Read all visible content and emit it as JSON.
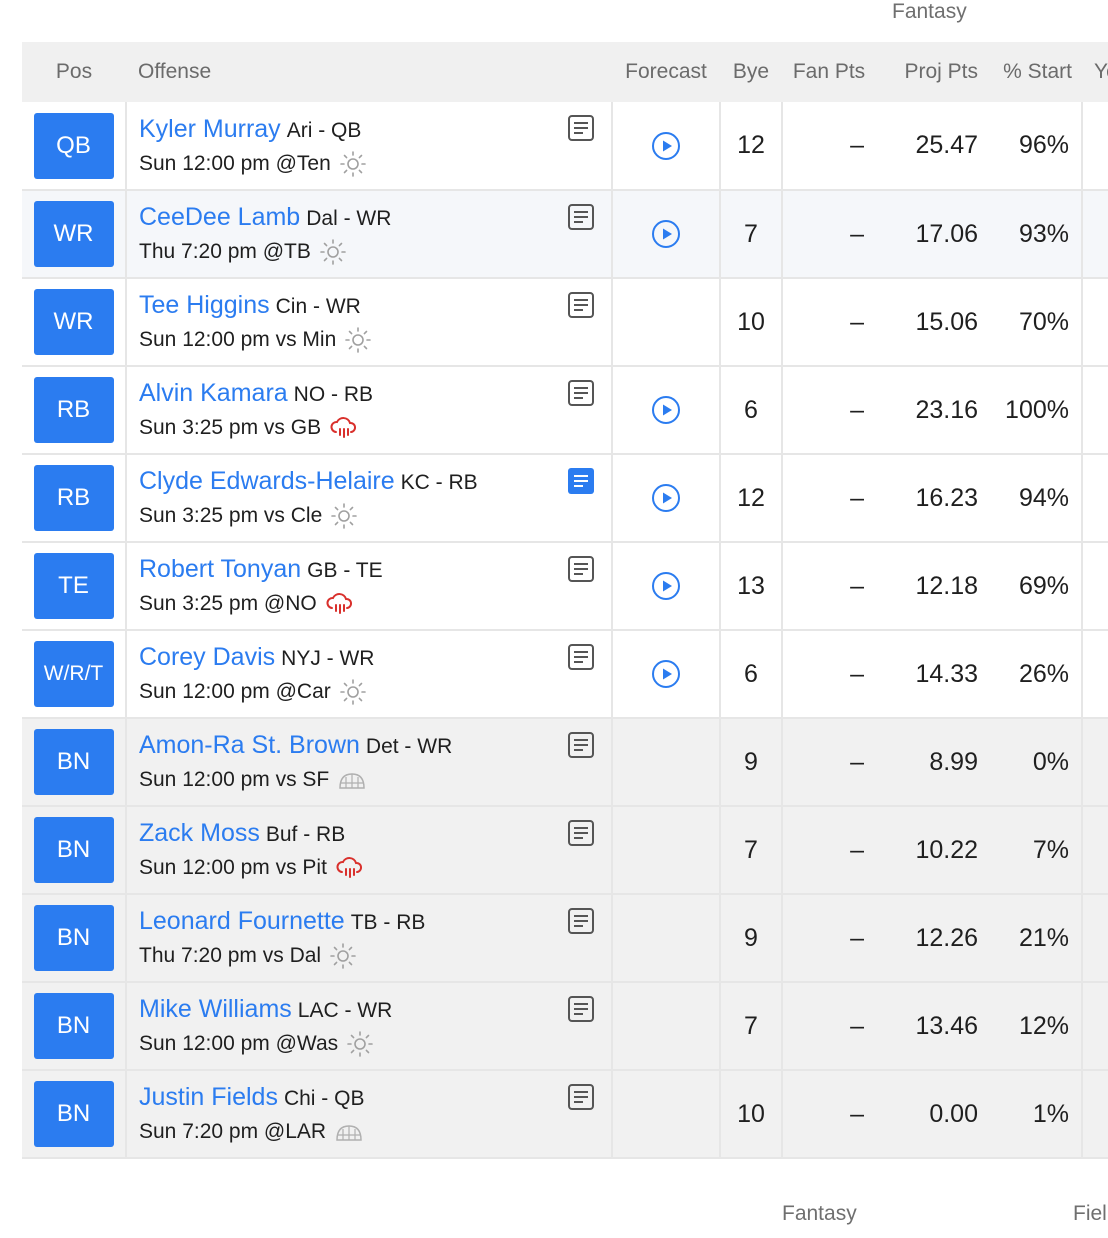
{
  "header": {
    "top_group": "Fantasy",
    "bottom_group_1": "Fantasy",
    "bottom_group_2": "Fiel",
    "columns": {
      "pos": "Pos",
      "offense": "Offense",
      "forecast": "Forecast",
      "bye": "Bye",
      "fan_pts": "Fan Pts",
      "proj_pts": "Proj Pts",
      "start": "% Start",
      "yo": "Yo"
    }
  },
  "rows": [
    {
      "pos": "QB",
      "name": "Kyler Murray",
      "team": "Ari - QB",
      "game": "Sun 12:00 pm @Ten",
      "weather": "sun-icon",
      "note": "outline",
      "forecast": true,
      "bye": "12",
      "fan": "–",
      "proj": "25.47",
      "start": "96%",
      "style": "normal"
    },
    {
      "pos": "WR",
      "name": "CeeDee Lamb",
      "team": "Dal - WR",
      "game": "Thu 7:20 pm @TB",
      "weather": "sun-icon",
      "note": "outline",
      "forecast": true,
      "bye": "7",
      "fan": "–",
      "proj": "17.06",
      "start": "93%",
      "style": "alt"
    },
    {
      "pos": "WR",
      "name": "Tee Higgins",
      "team": "Cin - WR",
      "game": "Sun 12:00 pm vs Min",
      "weather": "sun-icon",
      "note": "outline",
      "forecast": false,
      "bye": "10",
      "fan": "–",
      "proj": "15.06",
      "start": "70%",
      "style": "normal"
    },
    {
      "pos": "RB",
      "name": "Alvin Kamara",
      "team": "NO - RB",
      "game": "Sun 3:25 pm vs GB",
      "weather": "rain-icon",
      "note": "outline",
      "forecast": true,
      "bye": "6",
      "fan": "–",
      "proj": "23.16",
      "start": "100%",
      "style": "normal"
    },
    {
      "pos": "RB",
      "name": "Clyde Edwards-Helaire",
      "team": "KC - RB",
      "game": "Sun 3:25 pm vs Cle",
      "weather": "sun-icon",
      "note": "filled",
      "forecast": true,
      "bye": "12",
      "fan": "–",
      "proj": "16.23",
      "start": "94%",
      "style": "normal"
    },
    {
      "pos": "TE",
      "name": "Robert Tonyan",
      "team": "GB - TE",
      "game": "Sun 3:25 pm @NO",
      "weather": "rain-icon",
      "note": "outline",
      "forecast": true,
      "bye": "13",
      "fan": "–",
      "proj": "12.18",
      "start": "69%",
      "style": "normal"
    },
    {
      "pos": "W/R/T",
      "name": "Corey Davis",
      "team": "NYJ - WR",
      "game": "Sun 12:00 pm @Car",
      "weather": "sun-icon",
      "note": "outline",
      "forecast": true,
      "bye": "6",
      "fan": "–",
      "proj": "14.33",
      "start": "26%",
      "style": "normal"
    },
    {
      "pos": "BN",
      "name": "Amon-Ra St. Brown",
      "team": "Det - WR",
      "game": "Sun 12:00 pm vs SF",
      "weather": "dome-icon",
      "note": "outline",
      "forecast": false,
      "bye": "9",
      "fan": "–",
      "proj": "8.99",
      "start": "0%",
      "style": "bench"
    },
    {
      "pos": "BN",
      "name": "Zack Moss",
      "team": "Buf - RB",
      "game": "Sun 12:00 pm vs Pit",
      "weather": "rain-icon",
      "note": "outline",
      "forecast": false,
      "bye": "7",
      "fan": "–",
      "proj": "10.22",
      "start": "7%",
      "style": "bench"
    },
    {
      "pos": "BN",
      "name": "Leonard Fournette",
      "team": "TB - RB",
      "game": "Thu 7:20 pm vs Dal",
      "weather": "sun-icon",
      "note": "outline",
      "forecast": false,
      "bye": "9",
      "fan": "–",
      "proj": "12.26",
      "start": "21%",
      "style": "bench"
    },
    {
      "pos": "BN",
      "name": "Mike Williams",
      "team": "LAC - WR",
      "game": "Sun 12:00 pm @Was",
      "weather": "sun-icon",
      "note": "outline",
      "forecast": false,
      "bye": "7",
      "fan": "–",
      "proj": "13.46",
      "start": "12%",
      "style": "bench"
    },
    {
      "pos": "BN",
      "name": "Justin Fields",
      "team": "Chi - QB",
      "game": "Sun 7:20 pm @LAR",
      "weather": "dome-icon",
      "note": "outline",
      "forecast": false,
      "bye": "10",
      "fan": "–",
      "proj": "0.00",
      "start": "1%",
      "style": "bench"
    }
  ],
  "colors": {
    "accent": "#2b7cf0",
    "rain": "#d9302c",
    "sun": "#a0a0a0"
  }
}
